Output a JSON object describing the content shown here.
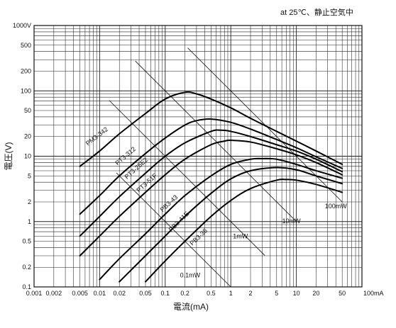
{
  "note": "at 25℃、静止空気中",
  "chart_data": {
    "type": "line",
    "title": "",
    "xlabel": "電流(mA)",
    "ylabel": "電圧(V)",
    "xscale": "log",
    "yscale": "log",
    "xlim": [
      0.001,
      100
    ],
    "ylim": [
      0.1,
      1000
    ],
    "grid": true,
    "legend": "none",
    "x_ticks": [
      {
        "v": 0.001,
        "label": "0.001"
      },
      {
        "v": 0.002,
        "label": "0.002"
      },
      {
        "v": 0.005,
        "label": "0.005"
      },
      {
        "v": 0.01,
        "label": "0.01"
      },
      {
        "v": 0.02,
        "label": "0.02"
      },
      {
        "v": 0.05,
        "label": "0.05"
      },
      {
        "v": 0.1,
        "label": "0.1"
      },
      {
        "v": 0.2,
        "label": "0.2"
      },
      {
        "v": 0.5,
        "label": "0.5"
      },
      {
        "v": 1,
        "label": "1"
      },
      {
        "v": 2,
        "label": "2"
      },
      {
        "v": 5,
        "label": "5"
      },
      {
        "v": 10,
        "label": "10"
      },
      {
        "v": 20,
        "label": "20"
      },
      {
        "v": 50,
        "label": "50"
      },
      {
        "v": 100,
        "label": "100mA"
      }
    ],
    "y_ticks": [
      {
        "v": 0.1,
        "label": "0.1"
      },
      {
        "v": 0.2,
        "label": "0.2"
      },
      {
        "v": 0.5,
        "label": "0.5"
      },
      {
        "v": 1,
        "label": "1"
      },
      {
        "v": 2,
        "label": "2"
      },
      {
        "v": 5,
        "label": "5"
      },
      {
        "v": 10,
        "label": "10"
      },
      {
        "v": 20,
        "label": "20"
      },
      {
        "v": 50,
        "label": "50"
      },
      {
        "v": 100,
        "label": "100"
      },
      {
        "v": 200,
        "label": "200"
      },
      {
        "v": 500,
        "label": "500"
      },
      {
        "v": 1000,
        "label": "1000V"
      }
    ],
    "series": [
      {
        "name": "PM3-342",
        "x": [
          0.005,
          0.01,
          0.02,
          0.05,
          0.1,
          0.2,
          0.3,
          0.5,
          1,
          2,
          5,
          10,
          20,
          50
        ],
        "y": [
          7,
          12,
          22,
          45,
          75,
          95,
          90,
          75,
          55,
          38,
          24,
          17,
          12,
          7.5
        ],
        "label_at": [
          0.0095,
          19
        ]
      },
      {
        "name": "PT3-312",
        "x": [
          0.005,
          0.01,
          0.02,
          0.05,
          0.1,
          0.2,
          0.3,
          0.5,
          1,
          2,
          5,
          10,
          20,
          50
        ],
        "y": [
          1.3,
          2.5,
          5,
          11,
          19,
          30,
          35,
          37,
          33,
          26,
          18,
          13.5,
          9.8,
          6.5
        ],
        "label_at": [
          0.026,
          9.5
        ]
      },
      {
        "name": "PT3-25E2",
        "x": [
          0.005,
          0.01,
          0.02,
          0.05,
          0.1,
          0.2,
          0.5,
          0.7,
          1,
          2,
          5,
          10,
          20,
          50
        ],
        "y": [
          0.6,
          1.2,
          2.4,
          5.5,
          10,
          16,
          24,
          25,
          24,
          20,
          15,
          12,
          9,
          5.8
        ],
        "label_at": [
          0.038,
          6.2
        ]
      },
      {
        "name": "PT3-51F",
        "x": [
          0.005,
          0.01,
          0.02,
          0.05,
          0.1,
          0.2,
          0.5,
          0.8,
          1,
          2,
          5,
          10,
          20,
          50
        ],
        "y": [
          0.3,
          0.6,
          1.2,
          2.8,
          5.2,
          9,
          15,
          17,
          17.5,
          16.5,
          13,
          10.5,
          8,
          5.2
        ],
        "label_at": [
          0.055,
          3.7
        ]
      },
      {
        "name": "PB3-43",
        "x": [
          0.01,
          0.02,
          0.05,
          0.1,
          0.2,
          0.5,
          1,
          2,
          3,
          5,
          10,
          20,
          50
        ],
        "y": [
          0.13,
          0.27,
          0.65,
          1.3,
          2.5,
          5,
          7.5,
          9,
          9.2,
          9,
          7.5,
          6,
          4.6
        ],
        "label_at": [
          0.12,
          1.8
        ]
      },
      {
        "name": "PB3-41E",
        "x": [
          0.02,
          0.05,
          0.1,
          0.2,
          0.5,
          1,
          2,
          5,
          10,
          20,
          50
        ],
        "y": [
          0.12,
          0.3,
          0.6,
          1.2,
          2.7,
          4.5,
          6,
          6.7,
          6.2,
          5,
          3.8
        ],
        "label_at": [
          0.17,
          0.95
        ]
      },
      {
        "name": "PB3-36",
        "x": [
          0.05,
          0.1,
          0.2,
          0.5,
          1,
          2,
          5,
          7,
          10,
          20,
          50
        ],
        "y": [
          0.12,
          0.25,
          0.5,
          1.2,
          2.1,
          3.2,
          4.3,
          4.4,
          4.3,
          3.7,
          2.8
        ],
        "label_at": [
          0.34,
          0.55
        ]
      }
    ],
    "power_lines": [
      {
        "label": "0.1mW",
        "mw": 0.1,
        "x": [
          0.018,
          1.0
        ],
        "label_at": [
          0.24,
          0.14
        ]
      },
      {
        "label": "1mW",
        "mw": 1,
        "x": [
          0.014,
          3.3
        ],
        "label_at": [
          1.4,
          0.55
        ]
      },
      {
        "label": "10mW",
        "mw": 10,
        "x": [
          0.035,
          9.8
        ],
        "label_at": [
          8.4,
          0.95
        ]
      },
      {
        "label": "100mW",
        "mw": 100,
        "x": [
          0.22,
          50
        ],
        "label_at": [
          40,
          1.6
        ]
      }
    ]
  }
}
